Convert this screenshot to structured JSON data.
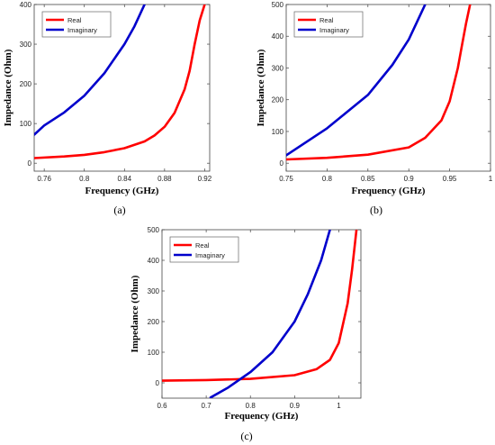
{
  "chart_data": [
    {
      "type": "line",
      "caption": "(a)",
      "xlabel": "Frequency (GHz)",
      "ylabel": "Impedance (Ohm)",
      "xlim": [
        0.75,
        0.925
      ],
      "ylim": [
        -20,
        400
      ],
      "xticks": [
        0.76,
        0.8,
        0.84,
        0.88,
        0.92
      ],
      "xtick_labels": [
        "0.76",
        "0.8",
        "0.84",
        "0.88",
        "0.92"
      ],
      "yticks": [
        0,
        100,
        200,
        300,
        400
      ],
      "ytick_labels": [
        "0",
        "100",
        "200",
        "300",
        "400"
      ],
      "grid": false,
      "legend_position": "top-left",
      "series": [
        {
          "name": "Real",
          "color": "#ff0000",
          "x": [
            0.75,
            0.78,
            0.8,
            0.82,
            0.84,
            0.86,
            0.87,
            0.88,
            0.89,
            0.9,
            0.905,
            0.91,
            0.915,
            0.92
          ],
          "y": [
            13,
            17,
            21,
            28,
            38,
            55,
            70,
            92,
            127,
            186,
            233,
            300,
            360,
            400
          ]
        },
        {
          "name": "Imaginary",
          "color": "#0000cc",
          "x": [
            0.75,
            0.76,
            0.78,
            0.8,
            0.82,
            0.84,
            0.85,
            0.86
          ],
          "y": [
            72,
            95,
            128,
            170,
            227,
            300,
            345,
            400
          ]
        }
      ]
    },
    {
      "type": "line",
      "caption": "(b)",
      "xlabel": "Frequency (GHz)",
      "ylabel": "Impedance (Ohm)",
      "xlim": [
        0.75,
        1.0
      ],
      "ylim": [
        -25,
        500
      ],
      "xticks": [
        0.75,
        0.8,
        0.85,
        0.9,
        0.95,
        1.0
      ],
      "xtick_labels": [
        "0.75",
        "0.8",
        "0.85",
        "0.9",
        "0.95",
        "1"
      ],
      "yticks": [
        0,
        100,
        200,
        300,
        400,
        500
      ],
      "ytick_labels": [
        "0",
        "100",
        "200",
        "300",
        "400",
        "500"
      ],
      "grid": false,
      "legend_position": "top-left",
      "series": [
        {
          "name": "Real",
          "color": "#ff0000",
          "x": [
            0.75,
            0.8,
            0.85,
            0.9,
            0.92,
            0.94,
            0.95,
            0.96,
            0.965,
            0.97,
            0.975
          ],
          "y": [
            12,
            17,
            27,
            50,
            80,
            135,
            195,
            300,
            370,
            440,
            500
          ]
        },
        {
          "name": "Imaginary",
          "color": "#0000cc",
          "x": [
            0.75,
            0.8,
            0.85,
            0.88,
            0.9,
            0.91,
            0.92
          ],
          "y": [
            25,
            110,
            215,
            310,
            390,
            445,
            500
          ]
        }
      ]
    },
    {
      "type": "line",
      "caption": "(c)",
      "xlabel": "Frequency (GHz)",
      "ylabel": "Impedance (Ohm)",
      "xlim": [
        0.6,
        1.05
      ],
      "ylim": [
        -50,
        500
      ],
      "xticks": [
        0.6,
        0.7,
        0.8,
        0.9,
        1.0
      ],
      "xtick_labels": [
        "0.6",
        "0.7",
        "0.8",
        "0.9",
        "1"
      ],
      "yticks": [
        0,
        100,
        200,
        300,
        400,
        500
      ],
      "ytick_labels": [
        "0",
        "100",
        "200",
        "300",
        "400",
        "500"
      ],
      "grid": false,
      "legend_position": "top-left",
      "series": [
        {
          "name": "Real",
          "color": "#ff0000",
          "x": [
            0.6,
            0.7,
            0.8,
            0.9,
            0.95,
            0.98,
            1.0,
            1.02,
            1.03,
            1.04
          ],
          "y": [
            7,
            9,
            13,
            25,
            45,
            75,
            130,
            260,
            370,
            500
          ]
        },
        {
          "name": "Imaginary",
          "color": "#0000cc",
          "x": [
            0.71,
            0.75,
            0.8,
            0.85,
            0.9,
            0.93,
            0.96,
            0.98
          ],
          "y": [
            -48,
            -15,
            35,
            100,
            200,
            290,
            400,
            500
          ]
        }
      ]
    }
  ]
}
